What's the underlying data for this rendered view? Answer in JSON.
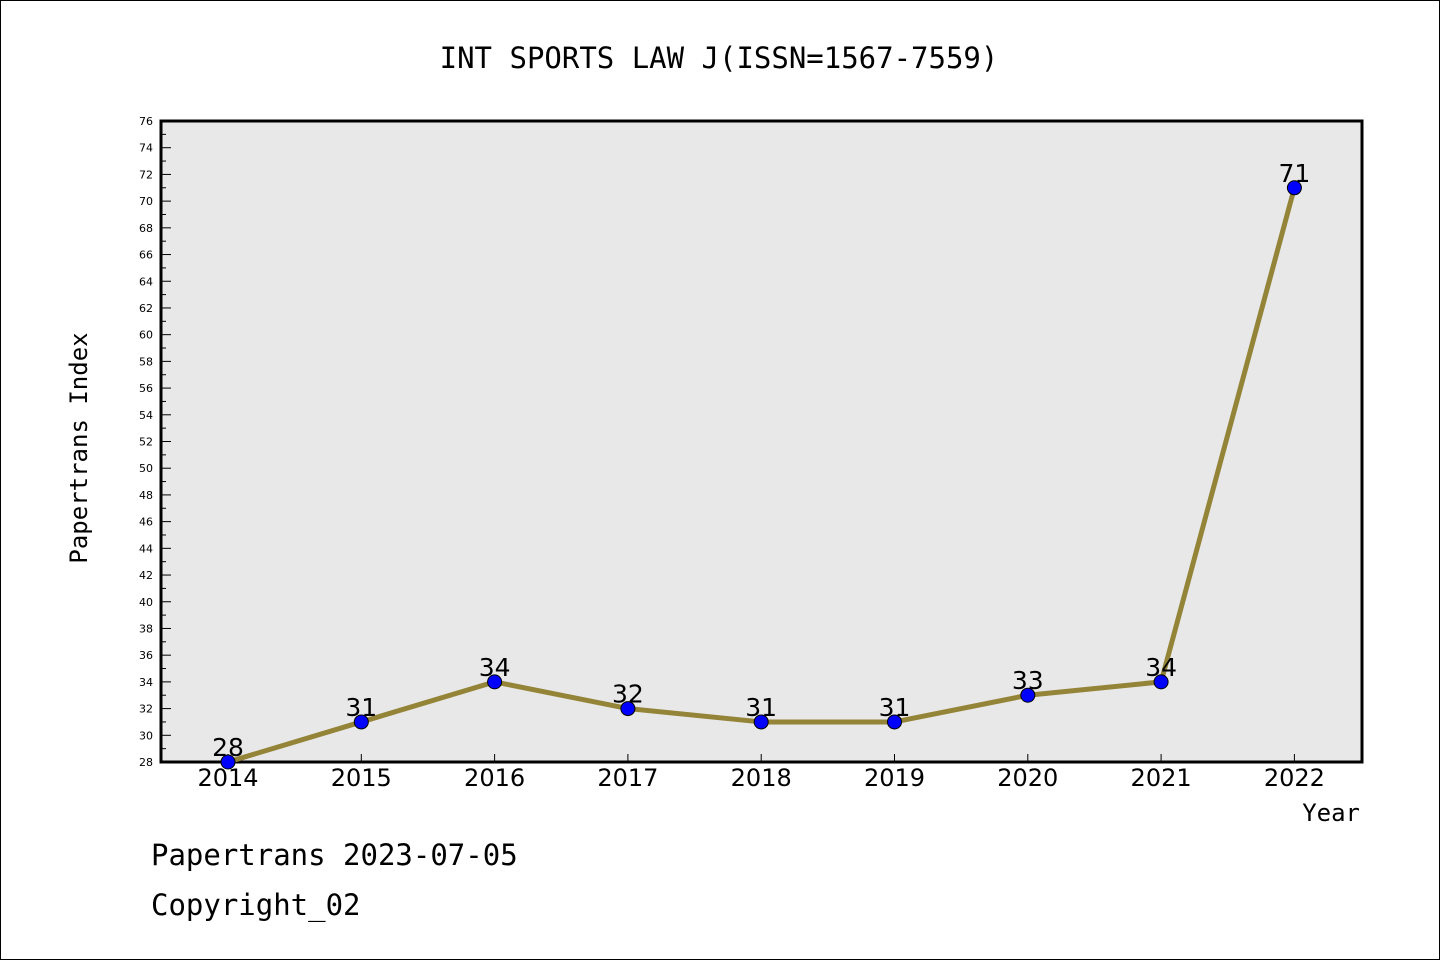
{
  "chart_data": {
    "type": "line",
    "title": "INT SPORTS LAW J(ISSN=1567-7559)",
    "xlabel": "Year",
    "ylabel": "Papertrans Index",
    "categories": [
      "2014",
      "2015",
      "2016",
      "2017",
      "2018",
      "2019",
      "2020",
      "2021",
      "2022"
    ],
    "series": [
      {
        "values": [
          28,
          31,
          34,
          32,
          31,
          31,
          33,
          34,
          71
        ]
      }
    ],
    "data_labels": [
      "28",
      "31",
      "34",
      "32",
      "31",
      "31",
      "33",
      "34",
      "71"
    ],
    "y_ticks": [
      "28",
      "30",
      "32",
      "34",
      "36",
      "38",
      "40",
      "42",
      "44",
      "46",
      "48",
      "50",
      "52",
      "54",
      "56",
      "58",
      "60",
      "62",
      "64",
      "66",
      "68",
      "70",
      "72",
      "74",
      "76"
    ],
    "ylim": [
      28,
      76
    ],
    "grid": false,
    "line_color": "#948438",
    "marker_color": "#0000ff",
    "plot_background": "#e8e8e8"
  },
  "footer": {
    "date_text": "Papertrans 2023-07-05",
    "copyright_text": "Copyright_02"
  }
}
